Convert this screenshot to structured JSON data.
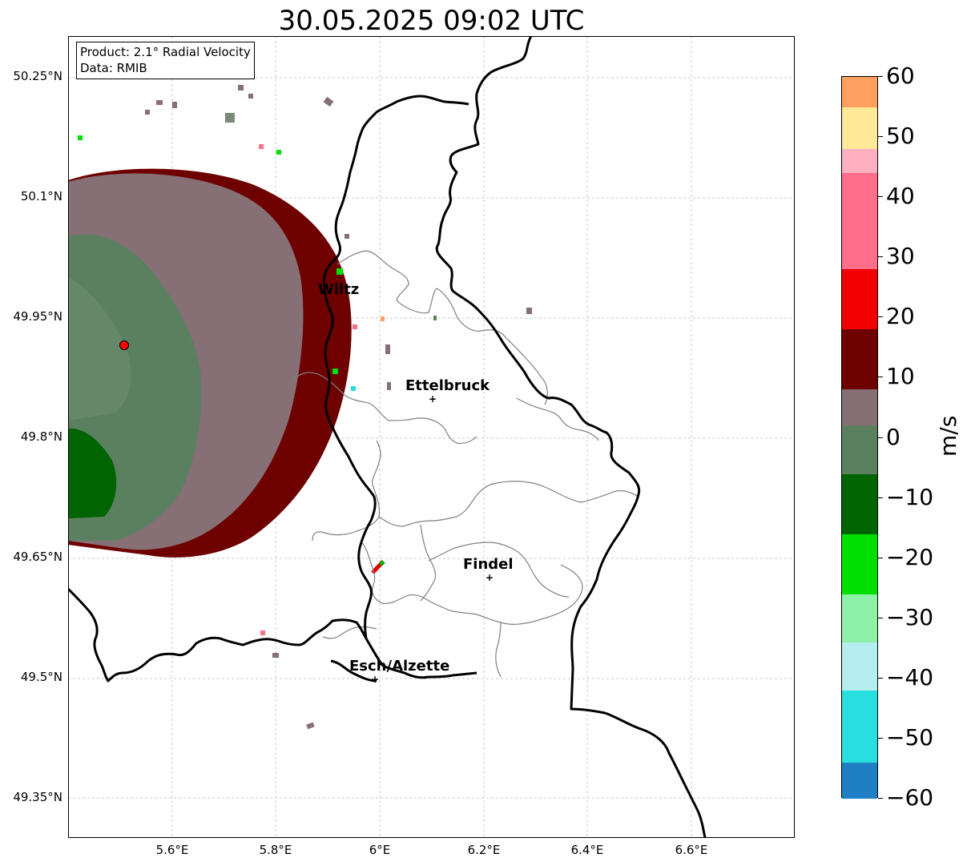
{
  "title": "30.05.2025 09:02 UTC",
  "info_box": {
    "product": "Product: 2.1° Radial Velocity",
    "source": "Data: RMIB"
  },
  "map": {
    "type": "radar_radial_velocity",
    "extent": {
      "lon": [
        5.4,
        6.8
      ],
      "lat": [
        49.3,
        50.3
      ]
    },
    "lat_ticks": [
      "50.25°N",
      "50.1°N",
      "49.95°N",
      "49.8°N",
      "49.65°N",
      "49.5°N",
      "49.35°N"
    ],
    "lon_ticks": [
      "5.6°E",
      "5.8°E",
      "6°E",
      "6.2°E",
      "6.4°E",
      "6.6°E"
    ],
    "grid": true,
    "radar_site": {
      "lon": 5.505,
      "lat": 49.914
    },
    "cities": [
      {
        "name": "Wiltz",
        "lon": 5.93,
        "lat": 49.97,
        "marker": false
      },
      {
        "name": "Ettelbruck",
        "lon": 6.1,
        "lat": 49.85,
        "marker": true
      },
      {
        "name": "Findel",
        "lon": 6.21,
        "lat": 49.627,
        "marker": true
      },
      {
        "name": "Esch/Alzette",
        "lon": 5.99,
        "lat": 49.5,
        "marker": true
      }
    ]
  },
  "colorbar": {
    "unit": "m/s",
    "min": -60,
    "max": 60,
    "ticks": [
      "60",
      "50",
      "40",
      "30",
      "20",
      "10",
      "0",
      "−10",
      "−20",
      "−30",
      "−40",
      "−50",
      "−60"
    ],
    "colors": {
      "lowest": "#1f7fc4",
      "cyan": "#29dede",
      "light_cyan": "#b6eef0",
      "light_green": "#8ff0a8",
      "green": "#00e000",
      "dark_green": "#006400",
      "gray_green": "#5b8060",
      "gray_pink": "#866f75",
      "dark_red": "#6e0000",
      "red": "#f00000",
      "pink": "#ff6e8a",
      "light_pink": "#ffb0c0",
      "yellow": "#ffe898",
      "orange": "#ffa060"
    }
  }
}
